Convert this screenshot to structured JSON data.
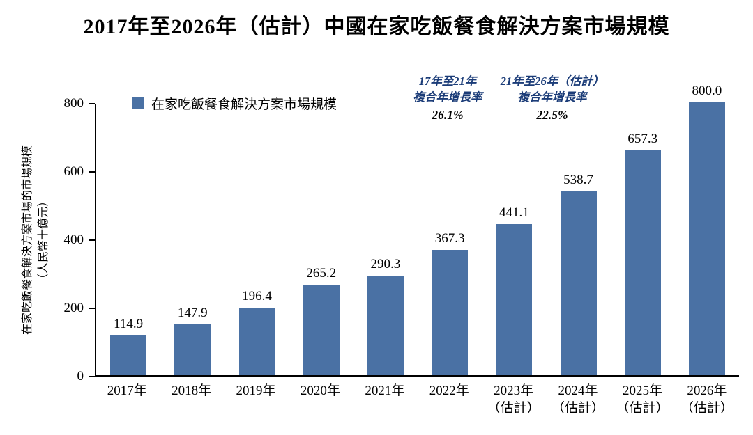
{
  "title": "2017年至2026年（估計）中國在家吃飯餐食解決方案市場規模",
  "y_axis": {
    "label_main": "在家吃飯餐食解決方案市場的市場規模",
    "label_unit": "（人民幣十億元）"
  },
  "legend": {
    "label": "在家吃飯餐食解決方案市場規模"
  },
  "annotations": [
    {
      "line1": "17年至21年",
      "line2": "複合年增長率",
      "value": "26.1%"
    },
    {
      "line1": "21年至26年（估計）",
      "line2": "複合年增長率",
      "value": "22.5%"
    }
  ],
  "colors": {
    "bar": "#4a71a4",
    "annotation": "#1b3c78",
    "axis": "#000000"
  },
  "chart_data": {
    "type": "bar",
    "title": "2017年至2026年（估計）中國在家吃飯餐食解決方案市場規模",
    "xlabel": "",
    "ylabel": "在家吃飯餐食解決方案市場的市場規模（人民幣十億元）",
    "ylim": [
      0,
      800
    ],
    "yticks": [
      0,
      200,
      400,
      600,
      800
    ],
    "grid": false,
    "legend_position": "top-left",
    "categories": [
      "2017年",
      "2018年",
      "2019年",
      "2020年",
      "2021年",
      "2022年",
      "2023年（估計）",
      "2024年（估計）",
      "2025年（估計）",
      "2026年（估計）"
    ],
    "x_labels": [
      {
        "line1": "2017年",
        "line2": ""
      },
      {
        "line1": "2018年",
        "line2": ""
      },
      {
        "line1": "2019年",
        "line2": ""
      },
      {
        "line1": "2020年",
        "line2": ""
      },
      {
        "line1": "2021年",
        "line2": ""
      },
      {
        "line1": "2022年",
        "line2": ""
      },
      {
        "line1": "2023年",
        "line2": "（估計）"
      },
      {
        "line1": "2024年",
        "line2": "（估計）"
      },
      {
        "line1": "2025年",
        "line2": "（估計）"
      },
      {
        "line1": "2026年",
        "line2": "（估計）"
      }
    ],
    "values": [
      114.9,
      147.9,
      196.4,
      265.2,
      290.3,
      367.3,
      441.1,
      538.7,
      657.3,
      800.0
    ]
  }
}
